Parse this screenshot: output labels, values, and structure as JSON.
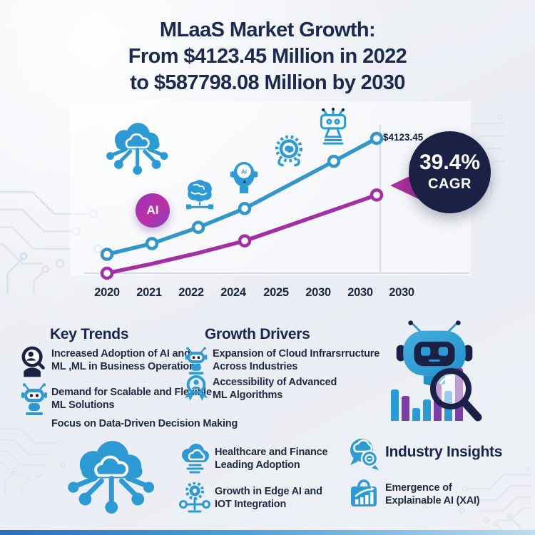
{
  "colors": {
    "line_blue": "#3296c8",
    "line_purple": "#a42fa5",
    "icon_blue": "#2e9ad4",
    "navy": "#1b2145",
    "title_navy": "#1c2a4f",
    "background": "#eef1f6"
  },
  "title": {
    "line1": "MLaaS Market Growth:",
    "line2": "From $4123.45 Million in 2022",
    "line3": "to $587798.08 Million by 2030"
  },
  "labels": {
    "ai": "AI"
  },
  "chart_data": {
    "type": "line",
    "title": "MLaaS Market Growth: From $4123.45 Million in 2022 to $587798.08 Million by 2030",
    "categories": [
      "2020",
      "2021",
      "2022",
      "2024",
      "2025",
      "2030",
      "2030",
      "2030"
    ],
    "annotation": "$4123.45",
    "ylim": [
      0,
      100
    ],
    "ylabel": "",
    "xlabel": "",
    "grid": "single vertical gridline at last data point; light baseline axis; no y-axis labels",
    "legend": "none",
    "series": [
      {
        "name": "mlaas-market-upper-trend",
        "color": "#3296c8",
        "x": [
          "2020",
          "2021",
          "2022",
          "2024",
          "2030",
          "2030"
        ],
        "values": [
          14,
          22,
          34,
          48,
          83,
          100
        ],
        "marker_indices": [
          0,
          1,
          2,
          3,
          4,
          5
        ]
      },
      {
        "name": "mlaas-market-lower-trend",
        "color": "#a42fa5",
        "x": [
          "2020",
          "2021",
          "2022",
          "2024",
          "2030"
        ],
        "values": [
          0,
          7,
          15,
          24,
          58
        ],
        "marker_indices": [
          0,
          3,
          4
        ]
      }
    ]
  },
  "cagr_badge": {
    "value": "39.4%",
    "label": "CAGR"
  },
  "key_trends": {
    "heading": "Key Trends",
    "items": [
      {
        "icon": "magnifier-person-icon",
        "text": "Increased Adoption of AI and\nML ,ML in Business Operations"
      },
      {
        "icon": "robot-icon",
        "text": "Demand for Scalable and Flexible\nML Solutions"
      },
      {
        "icon": "none",
        "text": "Focus on Data-Driven Decision Making"
      }
    ]
  },
  "growth_drivers": {
    "heading": "Growth Drivers",
    "items": [
      {
        "icon": "robot-icon",
        "text": "Expansion of Cloud Infrarsrructure\nAcross Industries"
      },
      {
        "icon": "award-person-icon",
        "text": "Accessibility of Advanced\nML Algorithms"
      }
    ]
  },
  "adoption_highlights": {
    "items": [
      {
        "icon": "cloud-computing-icon",
        "text": "Healthcare and Finance\nLeading Adoption"
      },
      {
        "icon": "edge-gear-icon",
        "text": "Growth in Edge AI and\nIOT Integration"
      }
    ]
  },
  "industry_insights": {
    "heading": "Industry Insights",
    "items": [
      {
        "icon": "xai-chart-icon",
        "text": "Emergence of\nExplainable AI (XAI)"
      }
    ]
  }
}
